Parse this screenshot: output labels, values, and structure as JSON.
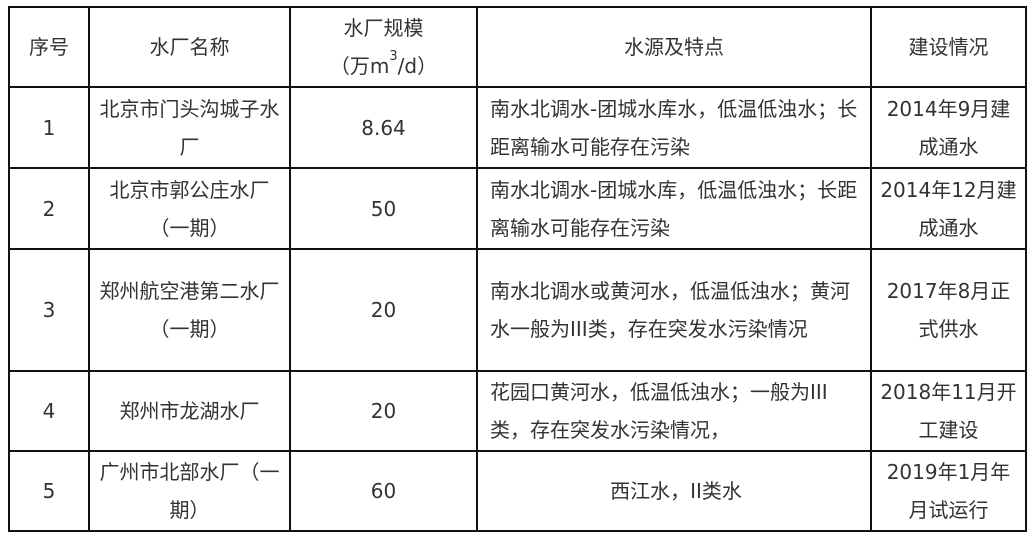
{
  "headers": {
    "index": "序号",
    "name": "水厂名称",
    "scale_line1": "水厂规模",
    "scale_line2_pre": "（万m",
    "scale_line2_sup": "3",
    "scale_line2_post": "/d）",
    "source": "水源及特点",
    "status": "建设情况"
  },
  "rows": [
    {
      "index": "1",
      "name": "北京市门头沟城子水厂",
      "scale": "8.64",
      "source": "南水北调水-团城水库水，低温低浊水；长距离输水可能存在污染",
      "status": "2014年9月建成通水"
    },
    {
      "index": "2",
      "name": "北京市郭公庄水厂（一期）",
      "scale": "50",
      "source": "南水北调水-团城水库，低温低浊水；长距离输水可能存在污染",
      "status": "2014年12月建成通水"
    },
    {
      "index": "3",
      "name": "郑州航空港第二水厂（一期）",
      "scale": "20",
      "source": "南水北调水或黄河水，低温低浊水；黄河水一般为III类，存在突发水污染情况",
      "status": "2017年8月正式供水"
    },
    {
      "index": "4",
      "name": "郑州市龙湖水厂",
      "scale": "20",
      "source": "花园口黄河水，低温低浊水；一般为III类，存在突发水污染情况，",
      "status": "2018年11月开工建设"
    },
    {
      "index": "5",
      "name": "广州市北部水厂（一期）",
      "scale": "60",
      "source": "西江水，II类水",
      "status": "2019年1月年月试运行"
    }
  ]
}
